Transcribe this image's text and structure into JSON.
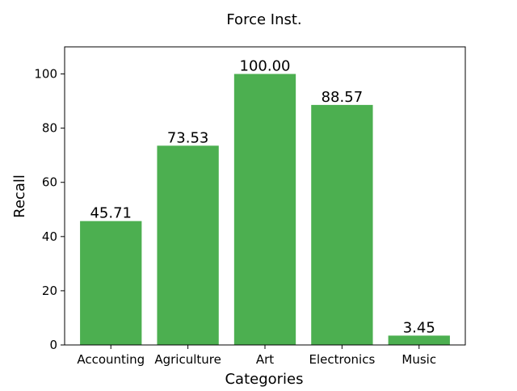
{
  "chart_data": {
    "type": "bar",
    "title": "Force Inst.",
    "xlabel": "Categories",
    "ylabel": "Recall",
    "categories": [
      "Accounting",
      "Agriculture",
      "Art",
      "Electronics",
      "Music"
    ],
    "values": [
      45.71,
      73.53,
      100.0,
      88.57,
      3.45
    ],
    "value_labels": [
      "45.71",
      "73.53",
      "100.00",
      "88.57",
      "3.45"
    ],
    "ylim": [
      0,
      110
    ],
    "yticks": [
      0,
      20,
      40,
      60,
      80,
      100
    ],
    "grid": false,
    "legend": "none",
    "bar_color": "#4caf50"
  }
}
